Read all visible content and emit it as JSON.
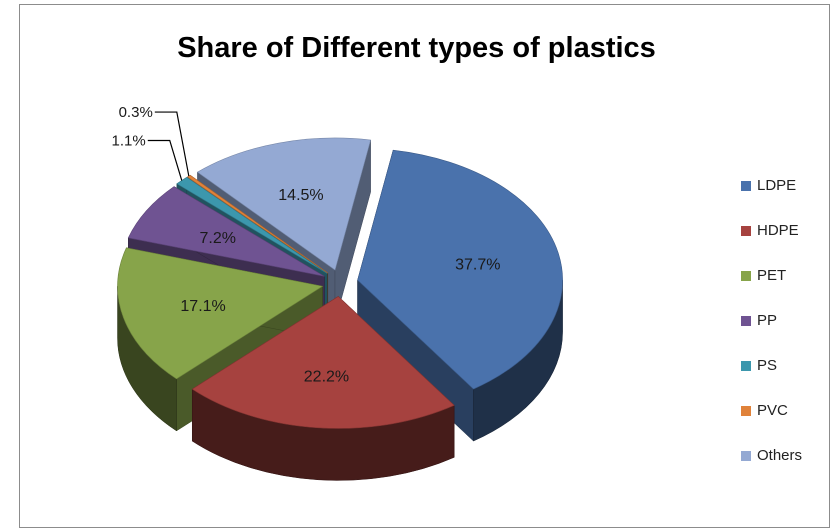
{
  "chart_data": {
    "type": "pie",
    "title": "Share of Different types of plastics",
    "exploded": true,
    "three_d": true,
    "legend_position": "right",
    "categories": [
      "LDPE",
      "HDPE",
      "PET",
      "PP",
      "PS",
      "PVC",
      "Others"
    ],
    "values": [
      37.7,
      22.2,
      17.1,
      7.2,
      1.1,
      0.3,
      14.5
    ],
    "data_labels": [
      "37.7%",
      "22.2%",
      "17.1%",
      "7.2%",
      "1.1%",
      "0.3%",
      "14.5%"
    ],
    "colors": [
      "#4a72ac",
      "#a6423f",
      "#87a44a",
      "#6f5392",
      "#3c97ad",
      "#e0823a",
      "#94a9d3"
    ]
  }
}
